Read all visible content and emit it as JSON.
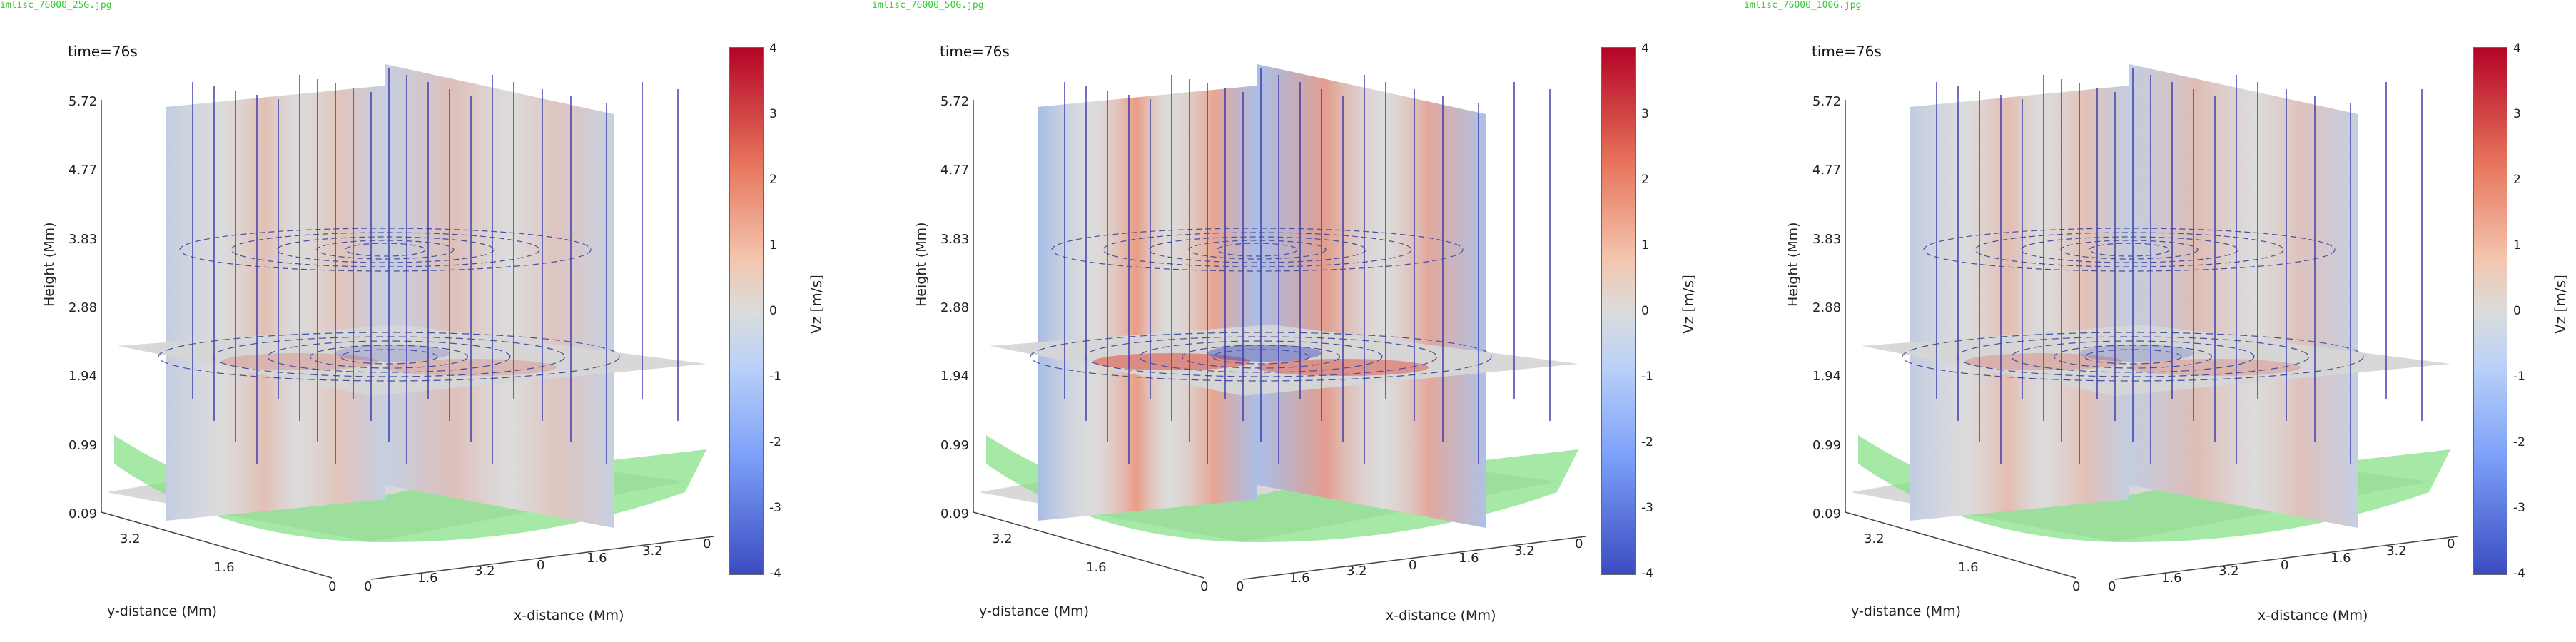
{
  "panels": [
    {
      "filename": "imlisc_76000_25G.jpg",
      "time_label": "time=76s",
      "intensity": 0.45
    },
    {
      "filename": "imlisc_76000_50G.jpg",
      "time_label": "time=76s",
      "intensity": 1.0
    },
    {
      "filename": "imlisc_76000_100G.jpg",
      "time_label": "time=76s",
      "intensity": 0.5
    }
  ],
  "axes": {
    "zlabel": "Height (Mm)",
    "ylabel": "y-distance (Mm)",
    "xlabel": "x-distance (Mm)",
    "z_ticks": [
      "5.72",
      "4.77",
      "3.83",
      "2.88",
      "1.94",
      "0.99",
      "0.09"
    ],
    "y_ticks": [
      "3.2",
      "1.6",
      "0"
    ],
    "x_ticks": [
      "1.6",
      "3.2",
      "0",
      "1.6",
      "3.2",
      "0"
    ]
  },
  "colorbar": {
    "title": "Vz [m/s]",
    "ticks": [
      "4",
      "3",
      "2",
      "1",
      "0",
      "-1",
      "-2",
      "-3",
      "-4"
    ],
    "range": [
      -4,
      4
    ],
    "colormap": "coolwarm"
  },
  "colors": {
    "field_line": "#3333aa",
    "surface_green": "#88e088",
    "plane_grey": "#dcdcdc",
    "filename_green": "#33cc33"
  },
  "chart_data": [
    {
      "type": "heatmap",
      "title": "time=76s",
      "zlabel": "Height (Mm)",
      "ylabel": "y-distance (Mm)",
      "xlabel": "x-distance (Mm)",
      "zlim": [
        0.09,
        5.72
      ],
      "colorbar_range": [
        -4,
        4
      ],
      "peak_vz_est": 1.5
    },
    {
      "type": "heatmap",
      "title": "time=76s",
      "zlabel": "Height (Mm)",
      "ylabel": "y-distance (Mm)",
      "xlabel": "x-distance (Mm)",
      "zlim": [
        0.09,
        5.72
      ],
      "colorbar_range": [
        -4,
        4
      ],
      "peak_vz_est": 3.0
    },
    {
      "type": "heatmap",
      "title": "time=76s",
      "zlabel": "Height (Mm)",
      "ylabel": "y-distance (Mm)",
      "xlabel": "x-distance (Mm)",
      "zlim": [
        0.09,
        5.72
      ],
      "colorbar_range": [
        -4,
        4
      ],
      "peak_vz_est": 1.5
    }
  ]
}
